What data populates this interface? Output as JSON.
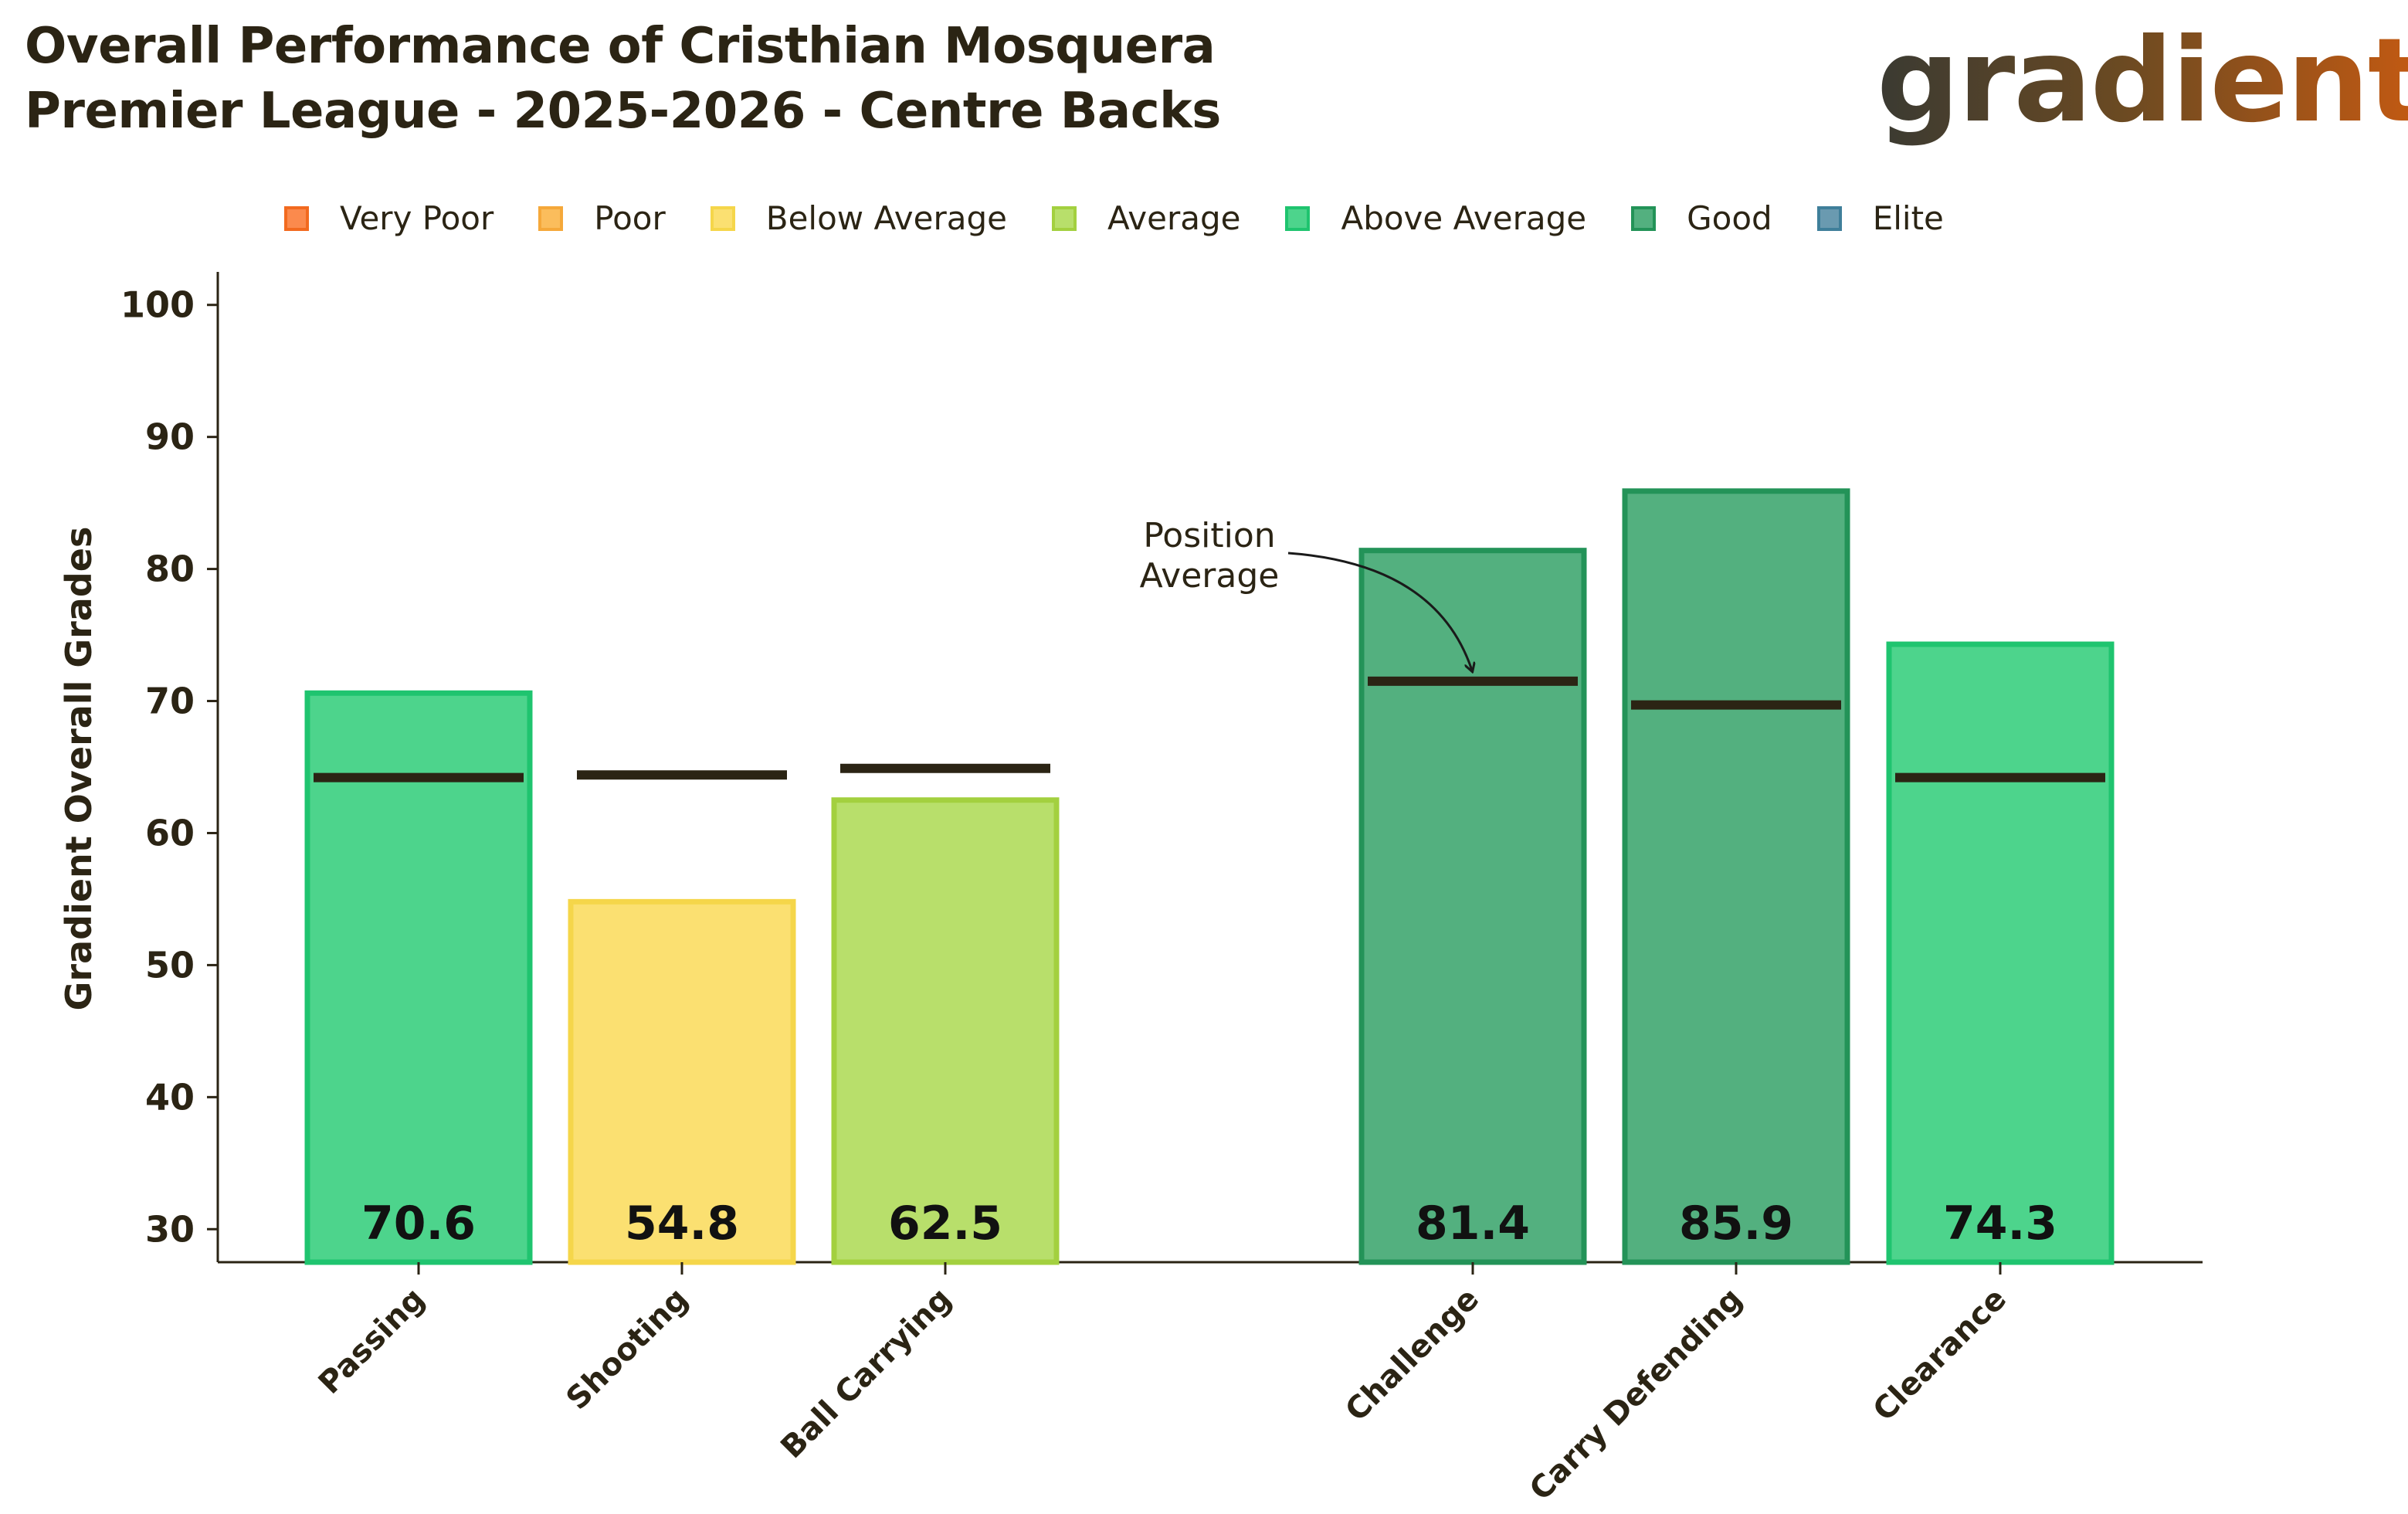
{
  "chart_data": {
    "type": "bar",
    "title_line1": "Overall Performance of Cristhian Mosquera",
    "title_line2": "Premier League - 2025-2026 - Centre Backs",
    "brand": "gradient",
    "ylabel": "Gradient Overall Grades",
    "xlabel": "",
    "ylim": [
      27.5,
      102.5
    ],
    "yticks": [
      30,
      40,
      50,
      60,
      70,
      80,
      90,
      100
    ],
    "categories": [
      "Passing",
      "Shooting",
      "Ball Carrying",
      "Challenge",
      "Carry Defending",
      "Clearance"
    ],
    "group_break_after": 2,
    "values": [
      70.6,
      54.8,
      62.5,
      81.4,
      85.9,
      74.3
    ],
    "value_labels": [
      "70.6",
      "54.8",
      "62.5",
      "81.4",
      "85.9",
      "74.3"
    ],
    "position_average": [
      64.2,
      64.4,
      64.9,
      71.5,
      69.7,
      64.2
    ],
    "bar_ratings": [
      "Above Average",
      "Below Average",
      "Average",
      "Good",
      "Good",
      "Above Average"
    ],
    "legend": [
      {
        "label": "Very Poor",
        "fill": "#fb8a4d",
        "edge": "#f26a1f"
      },
      {
        "label": "Poor",
        "fill": "#fbbd5c",
        "edge": "#f5a83a"
      },
      {
        "label": "Below Average",
        "fill": "#fbe071",
        "edge": "#f5d64a"
      },
      {
        "label": "Average",
        "fill": "#b8df6b",
        "edge": "#a3d03f"
      },
      {
        "label": "Above Average",
        "fill": "#4dd48c",
        "edge": "#1fc46f"
      },
      {
        "label": "Good",
        "fill": "#53b07f",
        "edge": "#239358"
      },
      {
        "label": "Elite",
        "fill": "#6a9ab0",
        "edge": "#3f7f9a"
      }
    ],
    "annotation": {
      "line1": "Position",
      "line2": "Average",
      "target_category": "Challenge"
    },
    "legend_placement": "top"
  }
}
